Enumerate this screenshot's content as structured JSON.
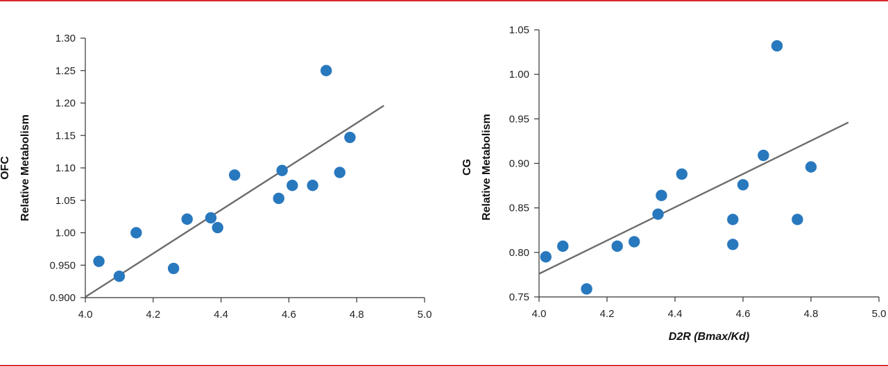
{
  "colors": {
    "point": "#2878be",
    "line": "#6b6b6b",
    "rule": "#d9262b"
  },
  "chart_data": [
    {
      "type": "scatter",
      "ylabel_line1": "OFC",
      "ylabel_line2": "Relative Metabolism",
      "xlabel": "",
      "xlim": [
        4.0,
        5.0
      ],
      "ylim": [
        0.9,
        1.3
      ],
      "xticks": [
        "4.0",
        "4.2",
        "4.4",
        "4.6",
        "4.8",
        "5.0"
      ],
      "yticks": [
        "0.900",
        "0.950",
        "1.00",
        "1.05",
        "1.10",
        "1.15",
        "1.20",
        "1.25",
        "1.30"
      ],
      "points": [
        {
          "x": 4.04,
          "y": 0.956
        },
        {
          "x": 4.1,
          "y": 0.933
        },
        {
          "x": 4.15,
          "y": 1.0
        },
        {
          "x": 4.26,
          "y": 0.945
        },
        {
          "x": 4.3,
          "y": 1.021
        },
        {
          "x": 4.37,
          "y": 1.023
        },
        {
          "x": 4.39,
          "y": 1.008
        },
        {
          "x": 4.44,
          "y": 1.089
        },
        {
          "x": 4.57,
          "y": 1.053
        },
        {
          "x": 4.58,
          "y": 1.096
        },
        {
          "x": 4.61,
          "y": 1.073
        },
        {
          "x": 4.67,
          "y": 1.073
        },
        {
          "x": 4.71,
          "y": 1.25
        },
        {
          "x": 4.75,
          "y": 1.093
        },
        {
          "x": 4.78,
          "y": 1.147
        }
      ],
      "trend": [
        [
          4.0,
          0.901
        ],
        [
          4.88,
          1.196
        ]
      ]
    },
    {
      "type": "scatter",
      "ylabel_line1": "CG",
      "ylabel_line2": "Relative Metabolism",
      "xlabel": "D2R (Bmax/Kd)",
      "xlim": [
        4.0,
        5.0
      ],
      "ylim": [
        0.75,
        1.05
      ],
      "xticks": [
        "4.0",
        "4.2",
        "4.4",
        "4.6",
        "4.8",
        "5.0"
      ],
      "yticks": [
        "0.75",
        "0.80",
        "0.85",
        "0.90",
        "0.95",
        "1.00",
        "1.05"
      ],
      "points": [
        {
          "x": 4.02,
          "y": 0.795
        },
        {
          "x": 4.07,
          "y": 0.807
        },
        {
          "x": 4.14,
          "y": 0.759
        },
        {
          "x": 4.23,
          "y": 0.807
        },
        {
          "x": 4.28,
          "y": 0.812
        },
        {
          "x": 4.35,
          "y": 0.843
        },
        {
          "x": 4.36,
          "y": 0.864
        },
        {
          "x": 4.42,
          "y": 0.888
        },
        {
          "x": 4.57,
          "y": 0.837
        },
        {
          "x": 4.57,
          "y": 0.809
        },
        {
          "x": 4.6,
          "y": 0.876
        },
        {
          "x": 4.66,
          "y": 0.909
        },
        {
          "x": 4.7,
          "y": 1.032
        },
        {
          "x": 4.76,
          "y": 0.837
        },
        {
          "x": 4.8,
          "y": 0.896
        }
      ],
      "trend": [
        [
          4.0,
          0.776
        ],
        [
          4.91,
          0.946
        ]
      ]
    }
  ]
}
